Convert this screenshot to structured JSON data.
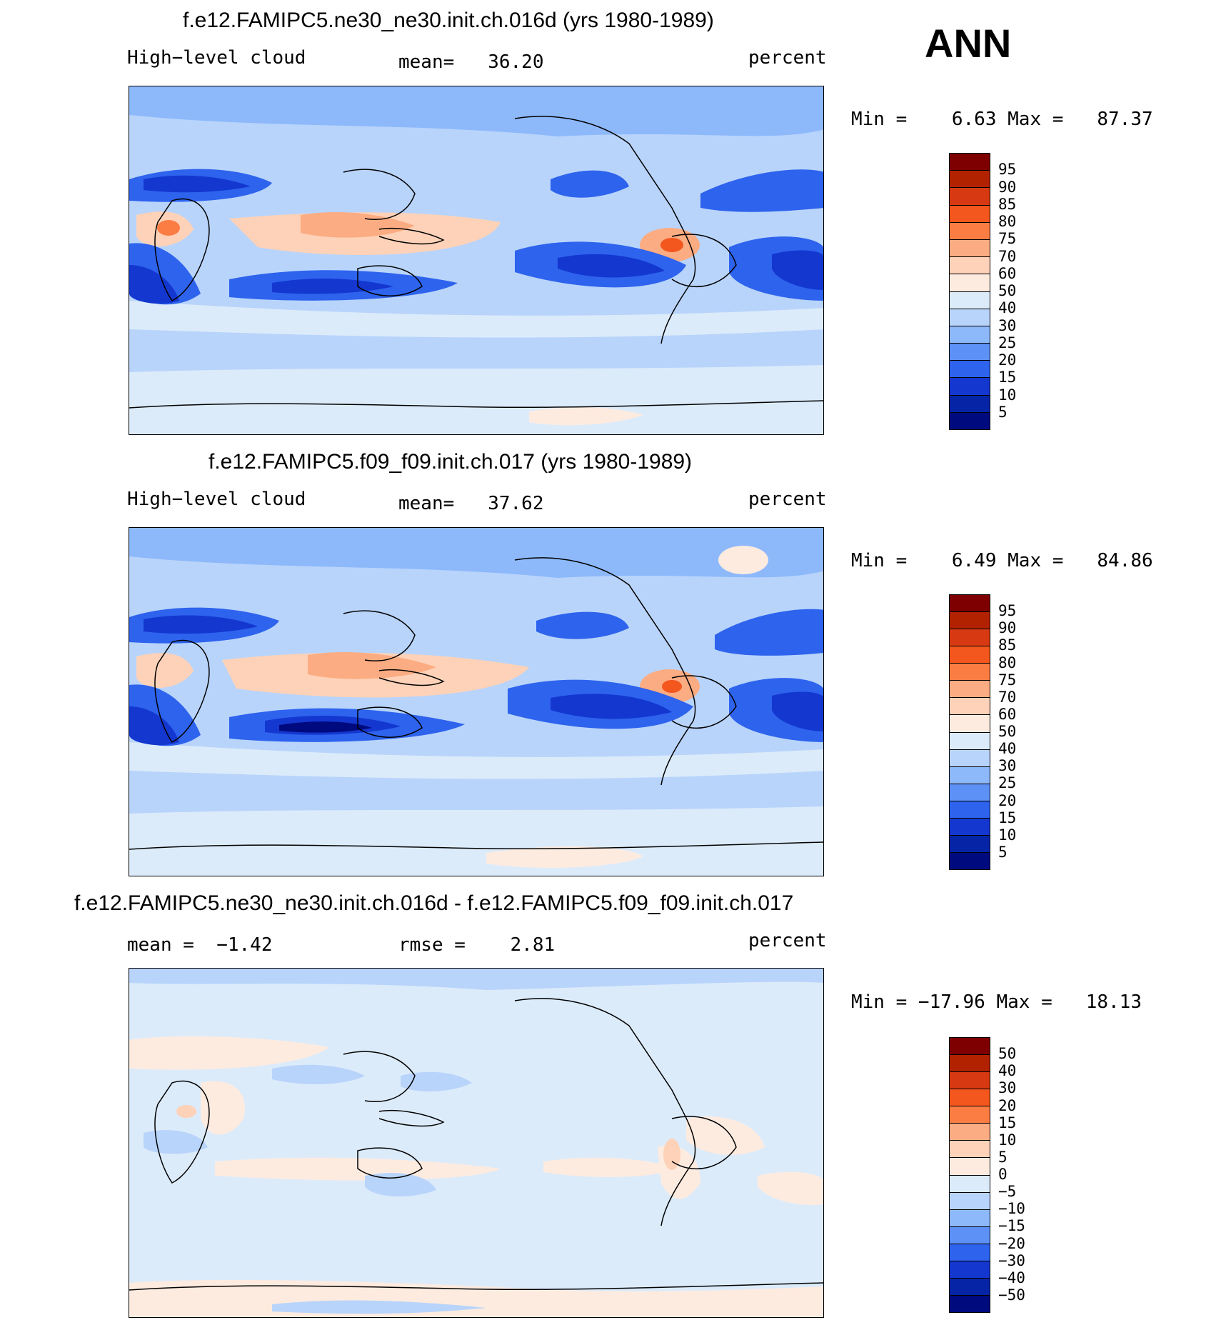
{
  "season": "ANN",
  "panels": [
    {
      "title": "f.e12.FAMIPC5.ne30_ne30.init.ch.016d (yrs 1980-1989)",
      "left_label": "High−level cloud",
      "center_label": "mean=   36.20",
      "right_label": "percent",
      "minmax": "Min =    6.63 Max =   87.37",
      "colorbar_levels": [
        "95",
        "90",
        "85",
        "80",
        "75",
        "70",
        "60",
        "50",
        "40",
        "30",
        "25",
        "20",
        "15",
        "10",
        "5"
      ],
      "colorbar_colors": [
        "#7f0000",
        "#b22200",
        "#d73a12",
        "#f3571e",
        "#fb7d43",
        "#fcac82",
        "#fdd2b8",
        "#fdebe0",
        "#dcebfa",
        "#b8d4fb",
        "#8db9fb",
        "#5d91f6",
        "#2e63ed",
        "#1437d0",
        "#0524a6",
        "#000a7f"
      ]
    },
    {
      "title": "f.e12.FAMIPC5.f09_f09.init.ch.017 (yrs 1980-1989)",
      "left_label": "High−level cloud",
      "center_label": "mean=   37.62",
      "right_label": "percent",
      "minmax": "Min =    6.49 Max =   84.86",
      "colorbar_levels": [
        "95",
        "90",
        "85",
        "80",
        "75",
        "70",
        "60",
        "50",
        "40",
        "30",
        "25",
        "20",
        "15",
        "10",
        "5"
      ],
      "colorbar_colors": [
        "#7f0000",
        "#b22200",
        "#d73a12",
        "#f3571e",
        "#fb7d43",
        "#fcac82",
        "#fdd2b8",
        "#fdebe0",
        "#dcebfa",
        "#b8d4fb",
        "#8db9fb",
        "#5d91f6",
        "#2e63ed",
        "#1437d0",
        "#0524a6",
        "#000a7f"
      ]
    },
    {
      "title": "f.e12.FAMIPC5.ne30_ne30.init.ch.016d - f.e12.FAMIPC5.f09_f09.init.ch.017",
      "left_label": "mean =  −1.42",
      "center_label": "rmse =    2.81",
      "right_label": "percent",
      "minmax": "Min = −17.96 Max =   18.13",
      "colorbar_levels": [
        "50",
        "40",
        "30",
        "20",
        "15",
        "10",
        "5",
        "0",
        "−5",
        "−10",
        "−15",
        "−20",
        "−30",
        "−40",
        "−50"
      ],
      "colorbar_colors": [
        "#7f0000",
        "#b22200",
        "#d73a12",
        "#f3571e",
        "#fb7d43",
        "#fcac82",
        "#fdd2b8",
        "#fdebe0",
        "#dcebfa",
        "#b8d4fb",
        "#8db9fb",
        "#5d91f6",
        "#2e63ed",
        "#1437d0",
        "#0524a6",
        "#000a7f"
      ]
    }
  ]
}
